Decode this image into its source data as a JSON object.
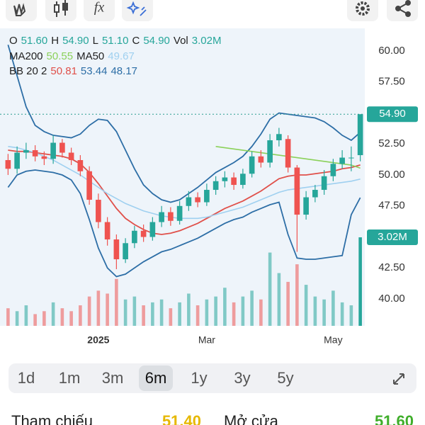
{
  "toolbar": {
    "indicator_icon": "fx"
  },
  "chart_data": {
    "type": "candlestick",
    "legend": {
      "ohlc": [
        {
          "key": "O",
          "value": "51.60"
        },
        {
          "key": "H",
          "value": "54.90"
        },
        {
          "key": "L",
          "value": "51.10"
        },
        {
          "key": "C",
          "value": "54.90"
        },
        {
          "key": "Vol",
          "value": "3.02M"
        }
      ],
      "bb_label": "BB 20 2",
      "bb_values": [
        "50.81",
        "53.44",
        "48.17"
      ]
    },
    "categories": [
      null,
      null,
      null,
      null,
      null,
      null,
      null,
      null,
      null,
      null,
      "2025",
      null,
      null,
      null,
      null,
      null,
      null,
      null,
      null,
      null,
      null,
      null,
      "Mar",
      null,
      null,
      null,
      null,
      null,
      null,
      null,
      null,
      null,
      null,
      null,
      null,
      null,
      "May",
      null,
      null,
      null
    ],
    "open": [
      51.2,
      50.5,
      51.8,
      52.0,
      51.5,
      51.3,
      52.6,
      51.8,
      51.2,
      50.3,
      48.0,
      46.2,
      44.8,
      43.2,
      44.5,
      45.5,
      45.0,
      46.2,
      47.0,
      46.3,
      47.5,
      48.2,
      47.8,
      48.8,
      49.5,
      49.8,
      49.2,
      50.1,
      51.5,
      51.0,
      52.8,
      52.9,
      50.6,
      46.8,
      48.2,
      48.8,
      49.9,
      50.9,
      51.4,
      51.6
    ],
    "high": [
      51.7,
      52.3,
      52.6,
      52.4,
      51.9,
      53.2,
      52.9,
      52.2,
      51.6,
      50.7,
      48.5,
      46.6,
      45.2,
      44.9,
      45.9,
      46.0,
      46.6,
      47.5,
      47.4,
      47.9,
      48.7,
      48.6,
      49.3,
      49.9,
      50.3,
      50.2,
      50.5,
      51.9,
      52.0,
      53.3,
      53.8,
      53.2,
      50.8,
      48.7,
      49.2,
      50.4,
      51.3,
      52.0,
      52.3,
      54.9
    ],
    "low": [
      50.0,
      50.1,
      51.3,
      51.1,
      50.8,
      50.9,
      51.4,
      50.8,
      49.9,
      47.6,
      45.7,
      44.3,
      42.4,
      42.9,
      44.1,
      44.6,
      44.7,
      45.8,
      45.9,
      46.0,
      47.1,
      47.4,
      47.5,
      48.4,
      49.0,
      48.8,
      48.9,
      49.8,
      50.6,
      50.6,
      52.3,
      50.2,
      43.8,
      46.4,
      47.8,
      48.4,
      49.5,
      50.5,
      50.3,
      51.1
    ],
    "close": [
      50.5,
      51.8,
      52.0,
      51.5,
      51.3,
      52.6,
      51.8,
      51.2,
      50.3,
      48.0,
      46.2,
      44.8,
      43.2,
      44.5,
      45.5,
      45.0,
      46.2,
      47.0,
      46.3,
      47.5,
      48.2,
      47.8,
      48.8,
      49.5,
      49.8,
      49.2,
      50.1,
      51.5,
      51.0,
      52.8,
      53.3,
      50.6,
      46.8,
      48.2,
      48.8,
      49.9,
      50.9,
      51.4,
      51.4,
      54.9
    ],
    "close_label": "54.90",
    "volume": [
      0.6,
      0.5,
      0.7,
      0.4,
      0.5,
      0.8,
      0.6,
      0.5,
      0.7,
      1.0,
      1.2,
      1.1,
      1.6,
      0.9,
      1.0,
      0.7,
      0.8,
      0.9,
      0.6,
      0.8,
      1.1,
      0.7,
      0.9,
      1.0,
      1.3,
      0.8,
      1.0,
      1.2,
      0.9,
      2.5,
      1.8,
      1.5,
      2.1,
      1.4,
      1.0,
      0.9,
      1.2,
      0.8,
      0.7,
      3.02
    ],
    "volume_label": "3.02M",
    "vlim": [
      0,
      10.15
    ],
    "up_color": "#26a69a",
    "down_color": "#ef5350",
    "series": [
      {
        "name": "MA200",
        "value_label": "50.55",
        "color": "#8bd15a",
        "values": [
          null,
          null,
          null,
          null,
          null,
          null,
          null,
          null,
          null,
          null,
          null,
          null,
          null,
          null,
          null,
          null,
          null,
          null,
          null,
          null,
          null,
          null,
          null,
          52.3,
          52.2,
          52.1,
          52.0,
          51.9,
          51.8,
          51.7,
          51.6,
          51.5,
          51.4,
          51.3,
          51.2,
          51.1,
          51.0,
          50.9,
          50.8,
          50.55
        ]
      },
      {
        "name": "MA50",
        "value_label": "49.67",
        "color": "#9fd0f0",
        "values": [
          52.3,
          52.2,
          52.0,
          51.8,
          51.5,
          51.2,
          50.8,
          50.4,
          50.0,
          49.5,
          49.0,
          48.5,
          48.1,
          47.7,
          47.4,
          47.1,
          46.9,
          46.7,
          46.6,
          46.5,
          46.5,
          46.5,
          46.6,
          46.8,
          47.0,
          47.2,
          47.4,
          47.7,
          48.0,
          48.3,
          48.6,
          48.8,
          48.9,
          49.0,
          49.1,
          49.2,
          49.3,
          49.4,
          49.5,
          49.67
        ]
      }
    ],
    "bb": [
      {
        "color": "#e0504a",
        "values": [
          52.0,
          51.9,
          51.9,
          51.8,
          51.7,
          51.6,
          51.5,
          51.3,
          50.9,
          50.2,
          49.3,
          48.3,
          47.3,
          46.5,
          46.0,
          45.6,
          45.3,
          45.2,
          45.3,
          45.5,
          45.8,
          46.1,
          46.5,
          46.9,
          47.3,
          47.6,
          47.9,
          48.3,
          48.7,
          49.2,
          49.7,
          49.9,
          50.0,
          50.0,
          50.1,
          50.2,
          50.3,
          50.5,
          50.6,
          50.81
        ]
      },
      {
        "color": "#2d6ea6",
        "values": [
          60.5,
          58.0,
          55.5,
          54.0,
          53.5,
          53.2,
          53.1,
          53.0,
          53.3,
          54.0,
          54.5,
          54.4,
          53.5,
          52.0,
          50.5,
          49.2,
          48.5,
          48.0,
          47.8,
          48.0,
          48.5,
          49.0,
          49.6,
          50.2,
          50.6,
          51.0,
          51.5,
          52.3,
          53.3,
          54.5,
          55.0,
          54.9,
          54.8,
          54.7,
          54.6,
          54.3,
          53.8,
          53.2,
          52.8,
          53.44
        ]
      },
      {
        "color": "#2d6ea6",
        "values": [
          49.0,
          50.0,
          50.3,
          50.4,
          50.3,
          50.2,
          50.0,
          49.6,
          48.5,
          46.4,
          44.1,
          42.5,
          41.8,
          42.0,
          42.5,
          43.0,
          43.4,
          43.8,
          44.0,
          44.3,
          44.6,
          44.9,
          45.3,
          45.7,
          46.1,
          46.4,
          46.6,
          47.0,
          47.3,
          47.6,
          47.8,
          45.2,
          43.3,
          43.2,
          43.2,
          43.3,
          43.4,
          43.5,
          46.8,
          48.17
        ]
      }
    ],
    "ylim": [
      37.83,
      61.83
    ],
    "yticks": [
      {
        "value": 40,
        "label": "40.00"
      },
      {
        "value": 42.5,
        "label": "42.50"
      },
      {
        "value": 47.5,
        "label": "47.50"
      },
      {
        "value": 50,
        "label": "50.00"
      },
      {
        "value": 52.5,
        "label": "52.50"
      },
      {
        "value": 57.5,
        "label": "57.50"
      },
      {
        "value": 60,
        "label": "60.00"
      }
    ]
  },
  "ranges": [
    "1d",
    "1m",
    "3m",
    "6m",
    "1y",
    "3y",
    "5y"
  ],
  "selected_range": 3,
  "stats": [
    {
      "label": "Tham chiếu",
      "value": "51.40",
      "color": "#e6b800"
    },
    {
      "label": "Mở cửa",
      "value": "51.60",
      "color": "#3fae2a"
    }
  ]
}
